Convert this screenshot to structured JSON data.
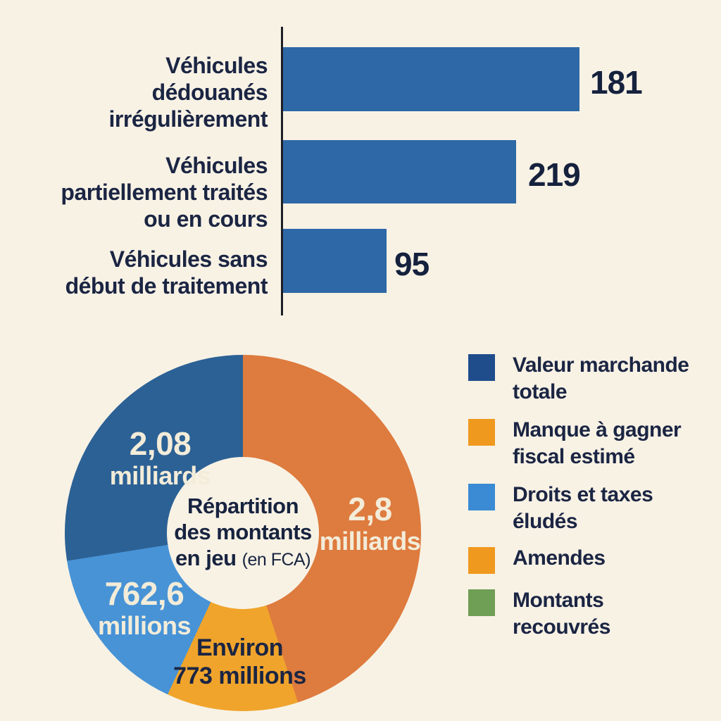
{
  "background_color": "#f8f2e5",
  "text_color": "#1b2543",
  "bar_chart": {
    "bar_color": "#2e68a6",
    "bars": [
      {
        "label_lines": [
          "Véhicules",
          "dédouanés",
          "irrégulièrement"
        ],
        "value": "181"
      },
      {
        "label_lines": [
          "Véhicules",
          "partiellement traités",
          "ou en cours"
        ],
        "value": "219"
      },
      {
        "label_lines": [
          "Véhicules sans",
          "début de traitement"
        ],
        "value": "95"
      }
    ]
  },
  "donut": {
    "center": {
      "line1": "Répartition",
      "line2": "des montants",
      "line3_main": "en jeu",
      "line3_suffix": "(en FCA)"
    },
    "slice_labels": {
      "dark_blue": {
        "line1": "2,08",
        "line2": "milliards"
      },
      "orange": {
        "line1": "2,8",
        "line2": "milliards"
      },
      "light_blue": {
        "line1": "762,6",
        "line2": "millions"
      },
      "yellow": {
        "line1": "Environ",
        "line2": "773 millions"
      }
    }
  },
  "legend": {
    "items": [
      {
        "label_lines": [
          "Valeur marchande",
          "totale"
        ],
        "color": "#1f4d8c"
      },
      {
        "label_lines": [
          "Manque à gagner",
          "fiscal estimé"
        ],
        "color": "#f0991f"
      },
      {
        "label_lines": [
          "Droits et taxes",
          "éludés"
        ],
        "color": "#3a8bd4"
      },
      {
        "label_lines": [
          "Amendes"
        ],
        "color": "#f0991f"
      },
      {
        "label_lines": [
          "Montants",
          "recouvrés"
        ],
        "color": "#6f9e55"
      }
    ]
  },
  "chart_data": [
    {
      "type": "bar",
      "orientation": "horizontal",
      "categories": [
        "Véhicules dédouanés irrégulièrement",
        "Véhicules partiellement traités ou en cours",
        "Véhicules sans début de traitement"
      ],
      "values": [
        181,
        219,
        95
      ],
      "bar_color": "#2e68a6",
      "value_labels": [
        "181",
        "219",
        "95"
      ],
      "note": "Drawn bar pixel lengths (421, 331, 147) are not proportional to the printed values",
      "grid": false,
      "legend_position": "none"
    },
    {
      "type": "pie",
      "subtype": "donut",
      "title": "Répartition des montants en jeu (en FCA)",
      "segments": [
        {
          "label": "2,8 milliards",
          "color": "#de7b3e",
          "angle_start_deg": 0,
          "angle_end_deg": 162,
          "share_pct": 45.0
        },
        {
          "label": "Environ 773 millions",
          "color": "#f0a42c",
          "angle_start_deg": 162,
          "angle_end_deg": 205,
          "share_pct": 11.9
        },
        {
          "label": "762,6 millions",
          "color": "#4793d6",
          "angle_start_deg": 205,
          "angle_end_deg": 261,
          "share_pct": 15.6
        },
        {
          "label": "2,08 milliards",
          "color": "#2c6195",
          "angle_start_deg": 261,
          "angle_end_deg": 360,
          "share_pct": 27.5
        }
      ],
      "legend": [
        "Valeur marchande totale",
        "Manque à gagner fiscal estimé",
        "Droits et taxes éludés",
        "Amendes",
        "Montants recouvrés"
      ],
      "legend_colors": [
        "#1f4d8c",
        "#f0991f",
        "#3a8bd4",
        "#f0991f",
        "#6f9e55"
      ],
      "legend_position": "right",
      "grid": false
    }
  ]
}
